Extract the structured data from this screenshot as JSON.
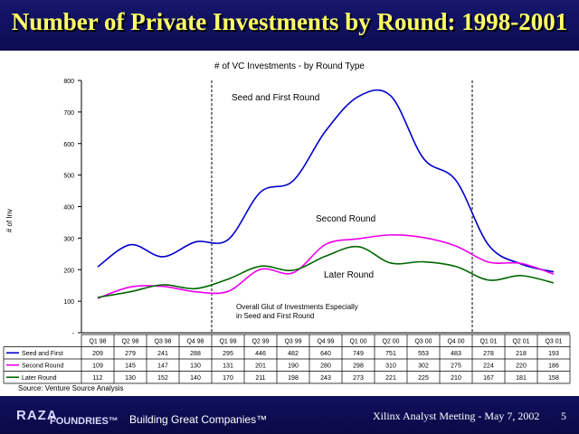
{
  "slide": {
    "title": "Number of Private Investments by Round: 1998-2001"
  },
  "footer": {
    "logo": "RAZA",
    "logo_sub": "FOUNDRIES™",
    "tagline": "Building Great Companies™",
    "meeting": "Xilinx Analyst Meeting - May 7, 2002",
    "page": "5"
  },
  "colors": {
    "banner": "#12126a",
    "title": "#ffff66",
    "seed": "#0000cc",
    "second": "#ee00ee",
    "later": "#006600"
  },
  "chart_data": {
    "type": "line",
    "title": "# of VC Investments - by Round Type",
    "ylabel": "# of Inv",
    "ylim": [
      0,
      800
    ],
    "yticks": [
      "-",
      "100",
      "200",
      "300",
      "400",
      "500",
      "600",
      "700",
      "800"
    ],
    "categories": [
      "Q1 98",
      "Q2 98",
      "Q3 98",
      "Q4 98",
      "Q1 99",
      "Q2 99",
      "Q3 99",
      "Q4 99",
      "Q1 00",
      "Q2 00",
      "Q3 00",
      "Q4 00",
      "Q1 01",
      "Q2 01",
      "Q3 01"
    ],
    "series": [
      {
        "name": "Seed and First",
        "color": "#0000cc",
        "values": [
          209,
          279,
          241,
          288,
          295,
          446,
          482,
          640,
          749,
          751,
          553,
          483,
          278,
          218,
          193
        ]
      },
      {
        "name": "Second Round",
        "color": "#ee00ee",
        "values": [
          109,
          145,
          147,
          130,
          131,
          201,
          190,
          280,
          298,
          310,
          302,
          275,
          224,
          220,
          186
        ]
      },
      {
        "name": "Later Round",
        "color": "#006600",
        "values": [
          112,
          130,
          152,
          140,
          170,
          211,
          198,
          243,
          273,
          221,
          225,
          210,
          167,
          181,
          158
        ]
      }
    ],
    "annotations": [
      "Seed and First Round",
      "Second Round",
      "Later Round",
      "Overall Glut of Investments Especially",
      "in Seed and First Round"
    ],
    "source": "Source: Venture Source Analysis",
    "grid": false,
    "legend": "table below chart"
  }
}
